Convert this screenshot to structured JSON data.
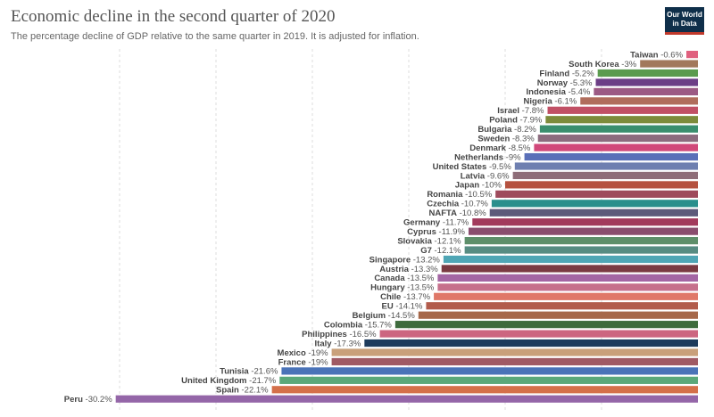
{
  "header": {
    "title": "Economic decline in the second quarter of 2020",
    "subtitle": "The percentage decline of GDP relative to the same quarter in 2019. It is adjusted for inflation."
  },
  "logo": {
    "line1": "Our World",
    "line2": "in Data"
  },
  "chart_data": {
    "type": "bar",
    "orientation": "horizontal",
    "title": "Economic decline in the second quarter of 2020",
    "subtitle": "The percentage decline of GDP relative to the same quarter in 2019. It is adjusted for inflation.",
    "xlim": [
      -32,
      0
    ],
    "grid": true,
    "categories": [
      "Taiwan",
      "South Korea",
      "Finland",
      "Norway",
      "Indonesia",
      "Nigeria",
      "Israel",
      "Poland",
      "Bulgaria",
      "Sweden",
      "Denmark",
      "Netherlands",
      "United States",
      "Latvia",
      "Japan",
      "Romania",
      "Czechia",
      "NAFTA",
      "Germany",
      "Cyprus",
      "Slovakia",
      "G7",
      "Singapore",
      "Austria",
      "Canada",
      "Hungary",
      "Chile",
      "EU",
      "Belgium",
      "Colombia",
      "Philippines",
      "Italy",
      "Mexico",
      "France",
      "Tunisia",
      "United Kingdom",
      "Spain",
      "Peru"
    ],
    "values": [
      -0.6,
      -3,
      -5.2,
      -5.3,
      -5.4,
      -6.1,
      -7.8,
      -7.9,
      -8.2,
      -8.3,
      -8.5,
      -9,
      -9.5,
      -9.6,
      -10,
      -10.5,
      -10.7,
      -10.8,
      -11.7,
      -11.9,
      -12.1,
      -12.1,
      -13.2,
      -13.3,
      -13.5,
      -13.5,
      -13.7,
      -14.1,
      -14.5,
      -15.7,
      -16.5,
      -17.3,
      -19,
      -19,
      -21.6,
      -21.7,
      -22.1,
      -30.2
    ],
    "value_labels": [
      "-0.6%",
      "-3%",
      "-5.2%",
      "-5.3%",
      "-5.4%",
      "-6.1%",
      "-7.8%",
      "-7.9%",
      "-8.2%",
      "-8.3%",
      "-8.5%",
      "-9%",
      "-9.5%",
      "-9.6%",
      "-10%",
      "-10.5%",
      "-10.7%",
      "-10.8%",
      "-11.7%",
      "-11.9%",
      "-12.1%",
      "-12.1%",
      "-13.2%",
      "-13.3%",
      "-13.5%",
      "-13.5%",
      "-13.7%",
      "-14.1%",
      "-14.5%",
      "-15.7%",
      "-16.5%",
      "-17.3%",
      "-19%",
      "-19%",
      "-21.6%",
      "-21.7%",
      "-22.1%",
      "-30.2%"
    ],
    "colors": [
      "#e0607e",
      "#a2785c",
      "#5b9b4f",
      "#6c3e86",
      "#9c5a84",
      "#b06d5c",
      "#c15065",
      "#7d8b3b",
      "#3a8e6e",
      "#8c6b7e",
      "#d1487a",
      "#5a6fb8",
      "#6e7fb0",
      "#8e6d78",
      "#b5513f",
      "#9e4b5c",
      "#2a8f8c",
      "#5d5a7a",
      "#a23a5c",
      "#8a4d6e",
      "#5e8f6a",
      "#578c82",
      "#4fa6b5",
      "#7a3a42",
      "#a466a4",
      "#c6708c",
      "#e07868",
      "#b25b4b",
      "#a6684a",
      "#3f6b3d",
      "#cc6680",
      "#1d3b5c",
      "#c9a07a",
      "#a05a64",
      "#4a73b8",
      "#5aa87a",
      "#d4704a",
      "#9466a8"
    ]
  }
}
